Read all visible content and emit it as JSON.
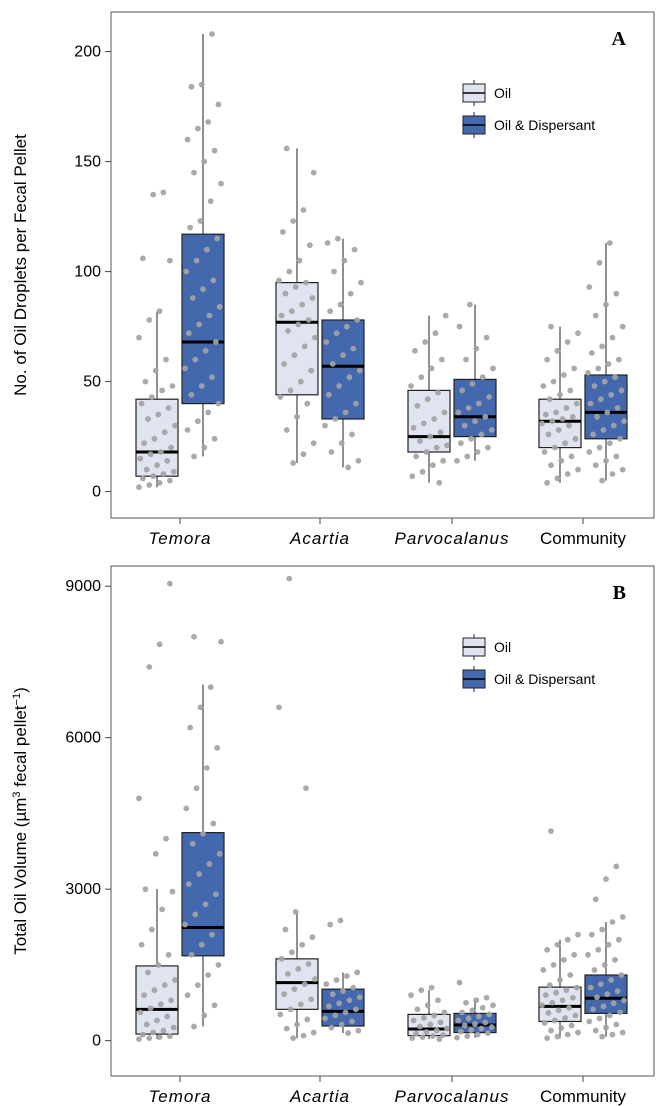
{
  "colors": {
    "oil": "#dfe4f0",
    "oil_dispersant": "#4468ad",
    "points": "#a3a3a3",
    "median": "#000000"
  },
  "chart_data": [
    {
      "type": "box",
      "panel_label": "A",
      "ylabel": "No. of Oil Droplets per Fecal Pellet",
      "ylabel_super": "",
      "ylabel_suffix": "",
      "ylim": [
        -12,
        218
      ],
      "yticks": [
        0,
        50,
        100,
        150,
        200
      ],
      "grid": false,
      "legend": {
        "placement": "top-right",
        "entries": [
          "Oil",
          "Oil & Dispersant"
        ]
      },
      "categories": [
        {
          "label": "Temora",
          "italic": true
        },
        {
          "label": "Acartia",
          "italic": true
        },
        {
          "label": "Parvocalanus",
          "italic": true
        },
        {
          "label": "Community",
          "italic": false
        }
      ],
      "series": [
        {
          "name": "Oil",
          "boxes": [
            {
              "whisker_low": 2,
              "q1": 7,
              "median": 18,
              "q3": 42,
              "whisker_high": 82
            },
            {
              "whisker_low": 13,
              "q1": 44,
              "median": 77,
              "q3": 95,
              "whisker_high": 156
            },
            {
              "whisker_low": 4,
              "q1": 18,
              "median": 25,
              "q3": 46,
              "whisker_high": 80
            },
            {
              "whisker_low": 4,
              "q1": 20,
              "median": 32,
              "q3": 42,
              "whisker_high": 75
            }
          ],
          "points": [
            [
              2,
              3,
              4,
              5,
              6,
              7,
              8,
              9,
              10,
              12,
              14,
              15,
              17,
              18,
              20,
              22,
              24,
              27,
              30,
              33,
              35,
              38,
              40,
              43,
              46,
              48,
              50,
              55,
              60,
              70,
              78,
              82,
              105,
              106,
              135,
              136
            ],
            [
              13,
              17,
              22,
              28,
              34,
              40,
              43,
              46,
              50,
              55,
              58,
              62,
              66,
              70,
              73,
              76,
              78,
              80,
              82,
              85,
              88,
              90,
              93,
              95,
              96,
              100,
              105,
              112,
              118,
              123,
              128,
              145,
              156
            ],
            [
              4,
              7,
              9,
              12,
              14,
              16,
              18,
              20,
              21,
              23,
              25,
              27,
              29,
              31,
              33,
              36,
              39,
              42,
              45,
              48,
              52,
              56,
              60,
              64,
              68,
              72,
              80
            ],
            [
              4,
              6,
              8,
              10,
              12,
              14,
              16,
              18,
              20,
              22,
              24,
              26,
              28,
              30,
              31,
              32,
              33,
              34,
              35,
              36,
              38,
              40,
              42,
              44,
              46,
              48,
              50,
              53,
              56,
              60,
              64,
              68,
              72,
              75
            ]
          ]
        },
        {
          "name": "Oil & Dispersant",
          "boxes": [
            {
              "whisker_low": 16,
              "q1": 40,
              "median": 68,
              "q3": 117,
              "whisker_high": 208
            },
            {
              "whisker_low": 11,
              "q1": 33,
              "median": 57,
              "q3": 78,
              "whisker_high": 115
            },
            {
              "whisker_low": 14,
              "q1": 25,
              "median": 34,
              "q3": 51,
              "whisker_high": 85
            },
            {
              "whisker_low": 5,
              "q1": 24,
              "median": 36,
              "q3": 53,
              "whisker_high": 113
            }
          ],
          "points": [
            [
              16,
              20,
              24,
              28,
              32,
              36,
              40,
              44,
              48,
              52,
              56,
              60,
              64,
              68,
              72,
              76,
              80,
              84,
              88,
              92,
              96,
              100,
              105,
              110,
              115,
              120,
              123,
              132,
              140,
              145,
              150,
              155,
              160,
              165,
              168,
              176,
              184,
              185,
              208
            ],
            [
              11,
              14,
              18,
              22,
              26,
              30,
              33,
              36,
              40,
              44,
              48,
              52,
              55,
              58,
              62,
              65,
              68,
              72,
              75,
              78,
              82,
              85,
              90,
              95,
              100,
              105,
              110,
              113,
              115
            ],
            [
              14,
              16,
              18,
              20,
              22,
              24,
              26,
              28,
              30,
              32,
              34,
              36,
              38,
              40,
              43,
              46,
              49,
              52,
              56,
              60,
              65,
              70,
              75,
              85
            ],
            [
              5,
              8,
              10,
              12,
              14,
              16,
              18,
              20,
              22,
              24,
              26,
              28,
              30,
              32,
              34,
              36,
              38,
              40,
              42,
              44,
              46,
              48,
              50,
              52,
              54,
              56,
              58,
              60,
              63,
              66,
              70,
              75,
              80,
              85,
              90,
              93,
              104,
              113
            ]
          ]
        }
      ]
    },
    {
      "type": "box",
      "panel_label": "B",
      "ylabel": "Total Oil Volume  (µm",
      "ylabel_super": "3",
      "ylabel_suffix": " fecal pellet",
      "ylabel_super2": "−1",
      "ylabel_end": ")",
      "ylim": [
        -700,
        9400
      ],
      "yticks": [
        0,
        3000,
        6000,
        9000
      ],
      "grid": false,
      "legend": {
        "placement": "top-right",
        "entries": [
          "Oil",
          "Oil & Dispersant"
        ]
      },
      "categories": [
        {
          "label": "Temora",
          "italic": true
        },
        {
          "label": "Acartia",
          "italic": true
        },
        {
          "label": "Parvocalanus",
          "italic": true
        },
        {
          "label": "Community",
          "italic": false
        }
      ],
      "series": [
        {
          "name": "Oil",
          "boxes": [
            {
              "whisker_low": 30,
              "q1": 130,
              "median": 620,
              "q3": 1480,
              "whisker_high": 3000
            },
            {
              "whisker_low": 50,
              "q1": 620,
              "median": 1150,
              "q3": 1620,
              "whisker_high": 2550
            },
            {
              "whisker_low": 30,
              "q1": 100,
              "median": 230,
              "q3": 520,
              "whisker_high": 1000
            },
            {
              "whisker_low": 50,
              "q1": 380,
              "median": 680,
              "q3": 1060,
              "whisker_high": 2000
            }
          ],
          "points": [
            [
              30,
              50,
              70,
              90,
              120,
              160,
              200,
              260,
              320,
              400,
              480,
              560,
              640,
              720,
              800,
              900,
              1000,
              1100,
              1200,
              1350,
              1500,
              1700,
              1900,
              2200,
              2600,
              2950,
              3000,
              3700,
              4000,
              4800,
              7400,
              7850,
              9050
            ],
            [
              50,
              100,
              160,
              240,
              320,
              420,
              520,
              620,
              720,
              820,
              920,
              1020,
              1120,
              1220,
              1320,
              1420,
              1520,
              1620,
              1750,
              1900,
              2050,
              2200,
              2550,
              5000,
              6600,
              9150
            ],
            [
              30,
              50,
              70,
              90,
              110,
              140,
              170,
              200,
              240,
              280,
              320,
              360,
              400,
              450,
              500,
              560,
              620,
              700,
              800,
              900,
              1000,
              1050
            ],
            [
              50,
              80,
              120,
              160,
              200,
              250,
              300,
              350,
              400,
              450,
              500,
              550,
              600,
              650,
              700,
              750,
              800,
              850,
              900,
              950,
              1000,
              1050,
              1100,
              1200,
              1300,
              1400,
              1500,
              1600,
              1700,
              1800,
              1900,
              2000,
              2100,
              4150
            ]
          ]
        },
        {
          "name": "Oil & Dispersant",
          "boxes": [
            {
              "whisker_low": 280,
              "q1": 1680,
              "median": 2240,
              "q3": 4120,
              "whisker_high": 7050
            },
            {
              "whisker_low": 150,
              "q1": 290,
              "median": 580,
              "q3": 1020,
              "whisker_high": 1350
            },
            {
              "whisker_low": 60,
              "q1": 160,
              "median": 310,
              "q3": 540,
              "whisker_high": 850
            },
            {
              "whisker_low": 80,
              "q1": 540,
              "median": 840,
              "q3": 1300,
              "whisker_high": 2350
            }
          ],
          "points": [
            [
              280,
              500,
              700,
              900,
              1100,
              1300,
              1500,
              1700,
              1900,
              2100,
              2300,
              2500,
              2700,
              2900,
              3100,
              3300,
              3500,
              3700,
              3900,
              4100,
              4300,
              4600,
              5000,
              5400,
              5800,
              6200,
              6600,
              7000,
              7900,
              8000
            ],
            [
              150,
              200,
              260,
              320,
              380,
              440,
              500,
              560,
              620,
              680,
              740,
              800,
              860,
              920,
              980,
              1050,
              1120,
              1200,
              1280,
              1350,
              2300,
              2380
            ],
            [
              60,
              90,
              120,
              150,
              180,
              210,
              240,
              270,
              300,
              330,
              360,
              400,
              440,
              480,
              520,
              560,
              600,
              650,
              700,
              750,
              800,
              850,
              1150
            ],
            [
              80,
              120,
              160,
              200,
              260,
              320,
              380,
              440,
              500,
              560,
              620,
              680,
              740,
              800,
              860,
              920,
              980,
              1050,
              1120,
              1200,
              1300,
              1400,
              1500,
              1600,
              1700,
              1800,
              1900,
              2000,
              2100,
              2200,
              2350,
              2450,
              2800,
              3200,
              3450
            ]
          ]
        }
      ]
    }
  ]
}
